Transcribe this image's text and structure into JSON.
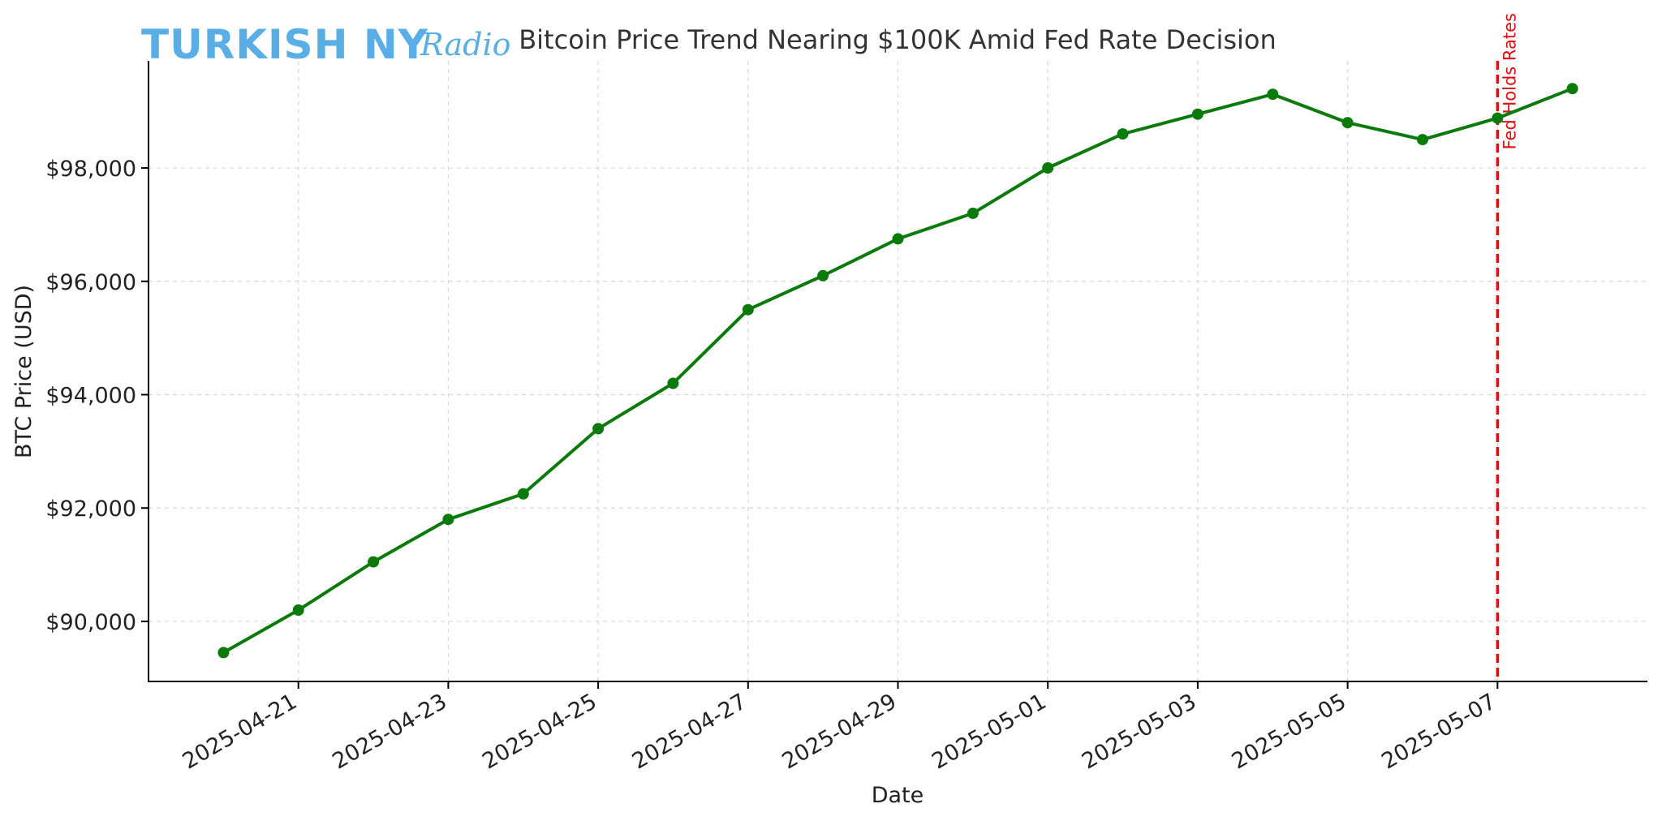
{
  "logo": {
    "main": "TURKISH NY",
    "script": "Radio"
  },
  "colors": {
    "series": "#0a7a0a",
    "event": "#dd1111",
    "logo": "#5aaee6"
  },
  "chart_data": {
    "type": "line",
    "title": "Bitcoin Price Trend Nearing $100K Amid Fed Rate Decision",
    "xlabel": "Date",
    "ylabel": "BTC Price (USD)",
    "x": [
      "2025-04-20",
      "2025-04-21",
      "2025-04-22",
      "2025-04-23",
      "2025-04-24",
      "2025-04-25",
      "2025-04-26",
      "2025-04-27",
      "2025-04-28",
      "2025-04-29",
      "2025-04-30",
      "2025-05-01",
      "2025-05-02",
      "2025-05-03",
      "2025-05-04",
      "2025-05-05",
      "2025-05-06",
      "2025-05-07",
      "2025-05-08"
    ],
    "series": [
      {
        "name": "BTC Price",
        "values": [
          89450,
          90200,
          91050,
          91800,
          92250,
          93400,
          94200,
          95500,
          96100,
          96750,
          97200,
          98000,
          98600,
          98950,
          99300,
          98800,
          98500,
          98880,
          99400
        ]
      }
    ],
    "xticks": [
      "2025-04-21",
      "2025-04-23",
      "2025-04-25",
      "2025-04-27",
      "2025-04-29",
      "2025-05-01",
      "2025-05-03",
      "2025-05-05",
      "2025-05-07"
    ],
    "yticks": [
      90000,
      92000,
      94000,
      96000,
      98000
    ],
    "ytick_labels": [
      "$90,000",
      "$92,000",
      "$94,000",
      "$96,000",
      "$98,000"
    ],
    "xlim": [
      "2025-04-19",
      "2025-05-09"
    ],
    "ylim": [
      88940,
      99890
    ],
    "grid": true,
    "annotations": [
      {
        "type": "vline",
        "x": "2025-05-07",
        "label": "Fed Holds Rates",
        "style": "dashed"
      }
    ]
  }
}
